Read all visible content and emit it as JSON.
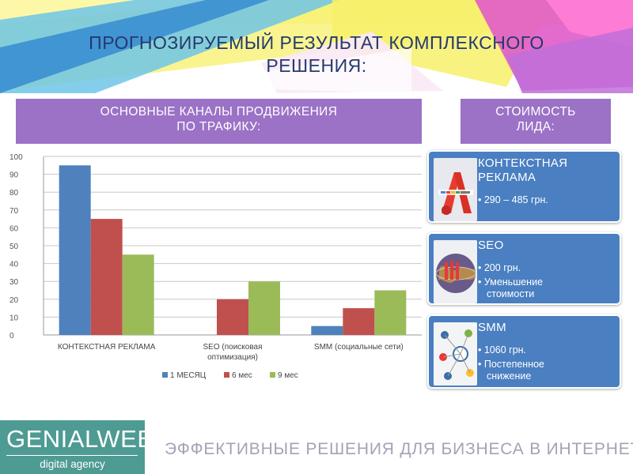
{
  "title": {
    "line1": "ПРОГНОЗИРУЕМЫЙ РЕЗУЛЬТАТ КОМПЛЕКСНОГО",
    "line2": "РЕШЕНИЯ:"
  },
  "left_heading": {
    "line1": "ОСНОВНЫЕ КАНАЛЫ ПРОДВИЖЕНИЯ",
    "line2": "ПО ТРАФИКУ:"
  },
  "right_heading": {
    "line1": "СТОИМОСТЬ",
    "line2": "ЛИДА:"
  },
  "chart_data": {
    "type": "bar",
    "categories": [
      [
        "КОНТЕКСТНАЯ РЕКЛАМА"
      ],
      [
        "SEO  (поисковая",
        "оптимизация)"
      ],
      [
        "SMM (социальные сети)"
      ]
    ],
    "series": [
      {
        "name": "1 МЕСЯЦ",
        "color": "#4f81bd",
        "values": [
          95,
          0,
          5
        ]
      },
      {
        "name": "6 мес",
        "color": "#c0504d",
        "values": [
          65,
          20,
          15
        ]
      },
      {
        "name": "9 мес",
        "color": "#9bbb59",
        "values": [
          45,
          30,
          25
        ]
      }
    ],
    "ylim": [
      0,
      100
    ],
    "yticks": [
      "0",
      "10",
      "20",
      "30",
      "40",
      "50",
      "60",
      "70",
      "80",
      "90",
      "100"
    ],
    "grid": true,
    "legend": "bottom"
  },
  "cards": [
    {
      "title_line1": "КОНТЕКСТНАЯ",
      "title_line2": "РЕКЛАМА",
      "bullets": [
        [
          "290 – 485 грн."
        ]
      ],
      "icon": "google-adwords-logo"
    },
    {
      "title_line1": "SEO",
      "title_line2": "",
      "bullets": [
        [
          "200 грн."
        ],
        [
          "Уменьшение",
          "стоимости"
        ]
      ],
      "icon": "seo-globe-image"
    },
    {
      "title_line1": "SMM",
      "title_line2": "",
      "bullets": [
        [
          "1060 грн."
        ],
        [
          "Постепенное",
          "снижение"
        ]
      ],
      "icon": "social-network-image"
    }
  ],
  "logo": {
    "name": "GENIALWEB",
    "sub": "digital agency"
  },
  "tagline": "ЭФФЕКТИВНЫЕ РЕШЕНИЯ ДЛЯ БИЗНЕСА В ИНТЕРНЕТЕ",
  "colors": {
    "card": "#4a7fc1",
    "band": "#9b72c6",
    "title": "#243a6e",
    "logo_bg": "#4e9b93",
    "tagline": "#a7a1b6"
  }
}
